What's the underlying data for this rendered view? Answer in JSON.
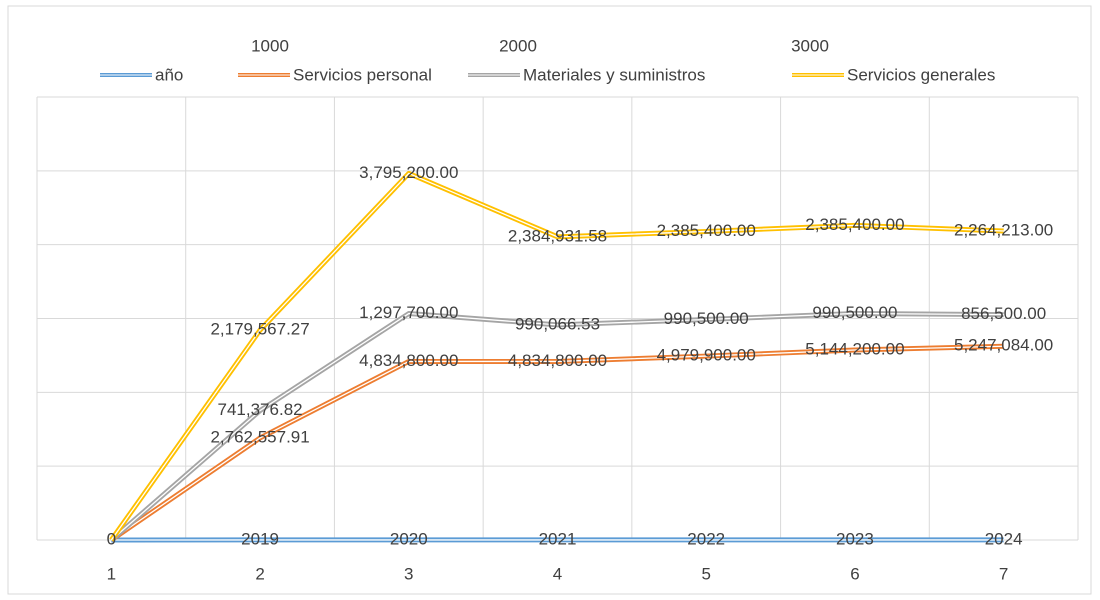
{
  "chart_data": {
    "type": "stacked_line",
    "annotations": [
      "1000",
      "2000",
      "3000"
    ],
    "categories": [
      "1",
      "2",
      "3",
      "4",
      "5",
      "6",
      "7"
    ],
    "series": [
      {
        "name": "año",
        "color": "#5b9bd5",
        "values": [
          0,
          2019,
          2020,
          2021,
          2022,
          2023,
          2024
        ]
      },
      {
        "name": "Servicios personal",
        "color": "#ed7d31",
        "values": [
          0,
          2762557.91,
          4834800,
          4834800,
          4979900,
          5144200,
          5247084
        ],
        "value_labels": [
          null,
          "2,762,557.91",
          "4,834,800.00",
          "4,834,800.00",
          "4,979,900.00",
          "5,144,200.00",
          "5,247,084.00"
        ]
      },
      {
        "name": "Materiales y suministros",
        "color": "#a5a5a5",
        "values": [
          0,
          741376.82,
          1297700,
          990066.53,
          990500,
          990500,
          856500
        ],
        "value_labels": [
          null,
          "741,376.82",
          "1,297,700.00",
          "990,066.53",
          "990,500.00",
          "990,500.00",
          "856,500.00"
        ]
      },
      {
        "name": "Servicios generales",
        "color": "#ffc000",
        "values": [
          0,
          2179567.27,
          3795200,
          2384931.58,
          2385400,
          2385400,
          2264213
        ],
        "value_labels": [
          null,
          "2,179,567.27",
          "3,795,200.00",
          "2,384,931.58",
          "2,385,400.00",
          "2,385,400.00",
          "2,264,213.00"
        ]
      }
    ],
    "ylim": [
      0,
      12000000
    ],
    "yticks": [
      0,
      2000000,
      4000000,
      6000000,
      8000000,
      10000000,
      12000000
    ],
    "grid": true,
    "legend": "top"
  }
}
